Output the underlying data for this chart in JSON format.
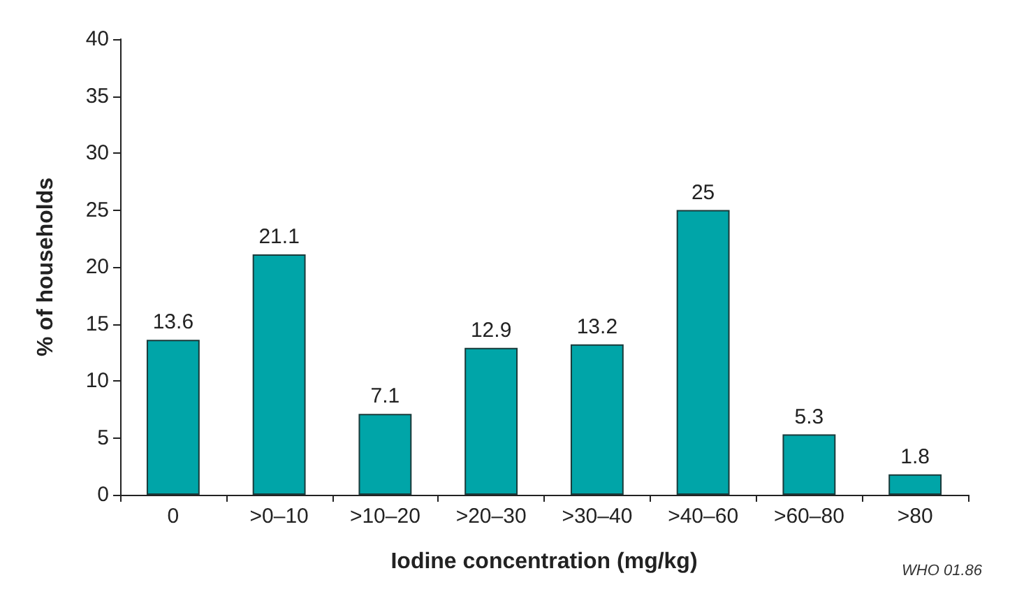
{
  "chart_data": {
    "type": "bar",
    "xlabel": "Iodine concentration (mg/kg)",
    "ylabel": "% of households",
    "categories": [
      "0",
      ">0–10",
      ">10–20",
      ">20–30",
      ">30–40",
      ">40–60",
      ">60–80",
      ">80"
    ],
    "values": [
      13.6,
      21.1,
      7.1,
      12.9,
      13.2,
      25,
      5.3,
      1.8
    ],
    "color": "#00a5a8",
    "ylim": [
      0,
      40
    ],
    "yticks": [
      0,
      5,
      10,
      15,
      20,
      25,
      30,
      35,
      40
    ],
    "grid": false,
    "data_labels": true,
    "annotations": [
      "WHO 01.86"
    ]
  }
}
